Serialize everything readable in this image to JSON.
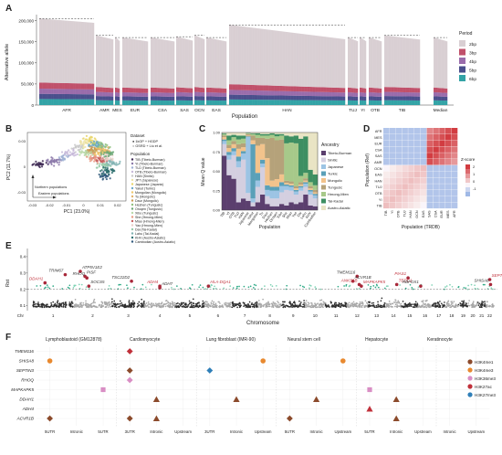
{
  "chart_data": [
    {
      "panel": "A",
      "type": "bar",
      "ylabel": "Alternative allele",
      "xlabel": "Population",
      "y_ticks": [
        "0",
        "50,000",
        "100,000",
        "150,000",
        "200,000"
      ],
      "ylim": [
        0,
        210000
      ],
      "groups": [
        "AFR",
        "AMR",
        "MES",
        "EUR",
        "CSA",
        "SAS",
        "OCN",
        "EAS",
        "HAN",
        "TUJ",
        "YI",
        "OTB",
        "TIB",
        "Median"
      ],
      "group_totals": [
        205000,
        165000,
        160000,
        160000,
        160000,
        162000,
        165000,
        160000,
        190000,
        160000,
        160000,
        160000,
        165000,
        160000
      ],
      "legend_title": "Period",
      "series": [
        {
          "name": "2bp",
          "color": "#d9cfd3",
          "approx_share": 0.74
        },
        {
          "name": "3bp",
          "color": "#c0506a",
          "approx_share": 0.07
        },
        {
          "name": "4bp",
          "color": "#9a6cab",
          "approx_share": 0.06
        },
        {
          "name": "5bp",
          "color": "#4a4f8c",
          "approx_share": 0.06
        },
        {
          "name": "6bp",
          "color": "#33a3a6",
          "approx_share": 0.07
        }
      ]
    },
    {
      "panel": "B",
      "type": "scatter",
      "xlabel": "PC1 (23.0%)",
      "ylabel": "PC2 (11.7%)",
      "x_ticks": [
        "-0.03",
        "-0.02",
        "-0.01",
        "0",
        "0.01",
        "0.02"
      ],
      "y_ticks": [
        "-0.03",
        "0",
        "0.03"
      ],
      "annot_north": "Northern populations",
      "annot_east": "Eastern populations",
      "dataset_title": "Dataset",
      "datasets": [
        "● 1kGP + HGDP",
        "○ GSRD + Liu et al."
      ],
      "population_title": "Population",
      "populations": [
        "TIB (Tibeto-Burman)",
        "YI (Tibeto-Burman)",
        "TUJ (Tibeto-Burman)",
        "OTB (Tibeto-Burman)",
        "HAN (Sinitic)",
        "JPT (Japanese)",
        "Japanese (Japanic)",
        "Yakut (Turkic)",
        "Mongolian (Mongolic)",
        "Tu (Mongolic)",
        "Daur (Mongolic)",
        "Hezhen (Tungusic)",
        "Oroqen (Tungusic)",
        "Xibo (Tungusic)",
        "She (Hmong-Mien)",
        "Miao (Hmong-Mien)",
        "Yao (Hmong-Mien)",
        "Dai (Tai-Kadai)",
        "Lahu (Tai-Kadai)",
        "KHV (Austro-Asiatic)",
        "Cambodian (Austro-Asiatic)"
      ],
      "pop_colors": [
        "#3f2a55",
        "#8a77a8",
        "#9fb0d4",
        "#c7b8d9",
        "#c9c9c9",
        "#ece3a8",
        "#e9d66b",
        "#6aa8c9",
        "#f0c86c",
        "#e3b36b",
        "#c99a54",
        "#8fbf7e",
        "#6aa774",
        "#b8d8a8",
        "#e79a83",
        "#c55e5e",
        "#ead0c8",
        "#97caa8",
        "#80b3b3",
        "#2e6f6f",
        "#315b7d"
      ]
    },
    {
      "panel": "C",
      "type": "bar",
      "ylabel": "Mean Q value",
      "xlabel": "Population",
      "y_ticks": [
        "0.00",
        "0.25",
        "0.50",
        "0.75",
        "1.00"
      ],
      "categories": [
        "TIB",
        "YI",
        "OTB",
        "TUJ",
        "HAN",
        "Japanese",
        "Yakut",
        "Mongolian",
        "Tu",
        "Daur",
        "Hezhen",
        "Oroqen",
        "Xibo",
        "She",
        "Miao",
        "Yao",
        "Dai",
        "Lahu",
        "KHV",
        "Cambodian"
      ],
      "legend_title": "Ancestry",
      "series": [
        {
          "name": "Tibeto-Burman",
          "color": "#5b3f6e",
          "values": [
            0.7,
            0.45,
            0.4,
            0.1,
            0.15,
            0.12,
            0.05,
            0.1,
            0.2,
            0.08,
            0.05,
            0.05,
            0.08,
            0.06,
            0.1,
            0.08,
            0.1,
            0.2,
            0.06,
            0.05
          ]
        },
        {
          "name": "Sinitic",
          "color": "#d4cfe0",
          "values": [
            0.15,
            0.2,
            0.3,
            0.45,
            0.5,
            0.1,
            0.05,
            0.2,
            0.35,
            0.1,
            0.1,
            0.1,
            0.15,
            0.2,
            0.15,
            0.12,
            0.15,
            0.1,
            0.14,
            0.1
          ]
        },
        {
          "name": "Japanese",
          "color": "#9cc4e4",
          "values": [
            0.04,
            0.06,
            0.05,
            0.08,
            0.08,
            0.72,
            0.05,
            0.08,
            0.05,
            0.08,
            0.1,
            0.1,
            0.08,
            0.05,
            0.05,
            0.04,
            0.04,
            0.04,
            0.04,
            0.04
          ]
        },
        {
          "name": "Turkic",
          "color": "#5aa0b8",
          "values": [
            0.02,
            0.04,
            0.04,
            0.06,
            0.03,
            0.01,
            0.7,
            0.1,
            0.05,
            0.06,
            0.05,
            0.05,
            0.05,
            0.02,
            0.02,
            0.02,
            0.02,
            0.02,
            0.02,
            0.02
          ]
        },
        {
          "name": "Mongolic",
          "color": "#f2c38c",
          "values": [
            0.03,
            0.05,
            0.05,
            0.1,
            0.05,
            0.01,
            0.05,
            0.35,
            0.2,
            0.35,
            0.08,
            0.1,
            0.1,
            0.02,
            0.02,
            0.02,
            0.02,
            0.02,
            0.02,
            0.02
          ]
        },
        {
          "name": "Tungusic",
          "color": "#b5a27a",
          "values": [
            0.02,
            0.04,
            0.04,
            0.06,
            0.05,
            0.02,
            0.06,
            0.1,
            0.08,
            0.25,
            0.55,
            0.5,
            0.45,
            0.03,
            0.03,
            0.03,
            0.03,
            0.03,
            0.03,
            0.03
          ]
        },
        {
          "name": "Hmong-Mien",
          "color": "#a7c98a",
          "values": [
            0.02,
            0.06,
            0.05,
            0.06,
            0.06,
            0.01,
            0.02,
            0.04,
            0.03,
            0.04,
            0.04,
            0.05,
            0.05,
            0.48,
            0.5,
            0.55,
            0.08,
            0.07,
            0.05,
            0.06
          ]
        },
        {
          "name": "Tai-Kadai",
          "color": "#3e8f62",
          "values": [
            0.01,
            0.06,
            0.03,
            0.05,
            0.04,
            0.005,
            0.01,
            0.02,
            0.02,
            0.02,
            0.02,
            0.03,
            0.02,
            0.1,
            0.08,
            0.1,
            0.48,
            0.47,
            0.16,
            0.14
          ]
        },
        {
          "name": "Austro-Asiatic",
          "color": "#e9e4c4",
          "values": [
            0.01,
            0.04,
            0.03,
            0.04,
            0.04,
            0.005,
            0.01,
            0.01,
            0.02,
            0.02,
            0.01,
            0.02,
            0.02,
            0.04,
            0.05,
            0.04,
            0.08,
            0.05,
            0.48,
            0.54
          ]
        }
      ]
    },
    {
      "panel": "D",
      "type": "heatmap",
      "xlabel": "Population (TRDB)",
      "ylabel": "Population (Ref)",
      "rows": [
        "AFR",
        "MES",
        "EUR",
        "CSA",
        "SAS",
        "AMR",
        "OCN",
        "EAS",
        "HAN",
        "TUJ",
        "OTB",
        "YI",
        "TIB"
      ],
      "cols": [
        "TIB",
        "YI",
        "OTB",
        "TUJ",
        "HAN",
        "OCN",
        "EAS",
        "SAS",
        "CSA",
        "EUR",
        "MES",
        "AFR"
      ],
      "legend_title": "Z-score",
      "legend_ticks": [
        "2",
        "1",
        "0",
        "-1"
      ]
    },
    {
      "panel": "E",
      "type": "scatter",
      "ylabel": "Rst",
      "xlabel": "Chromosome",
      "x_prefix": "Chr",
      "chromosomes": [
        "1",
        "2",
        "3",
        "4",
        "5",
        "6",
        "7",
        "8",
        "9",
        "10",
        "11",
        "12",
        "13",
        "14",
        "15",
        "16",
        "17",
        "18",
        "19",
        "20",
        "21",
        "22"
      ],
      "y_ticks": [
        "0.1",
        "0.2",
        "0.3",
        "0.4"
      ],
      "ylim": [
        0.07,
        0.45
      ],
      "threshold": 0.2,
      "labeled_genes": [
        {
          "gene": "DDAH1",
          "chr": "1",
          "pos": 0.3,
          "rst": 0.24,
          "color": "#c0303a"
        },
        {
          "gene": "ATP5V1E2",
          "chr": "2",
          "pos": 0.18,
          "rst": 0.31,
          "color": "#333333"
        },
        {
          "gene": "TRIM67",
          "chr": "1",
          "pos": 0.8,
          "rst": 0.29,
          "color": "#333333"
        },
        {
          "gene": "PISF",
          "chr": "2",
          "pos": 0.3,
          "rst": 0.28,
          "color": "#333333"
        },
        {
          "gene": "RHOQ",
          "chr": "2",
          "pos": 0.35,
          "rst": 0.27,
          "color": "#333333"
        },
        {
          "gene": "SOCS5",
          "chr": "2",
          "pos": 0.4,
          "rst": 0.22,
          "color": "#333333"
        },
        {
          "gene": "TSC22D2",
          "chr": "3",
          "pos": 0.6,
          "rst": 0.25,
          "color": "#333333"
        },
        {
          "gene": "ADH7",
          "chr": "4",
          "pos": 0.5,
          "rst": 0.21,
          "color": "#333333"
        },
        {
          "gene": "ADH4",
          "chr": "4",
          "pos": 0.5,
          "rst": 0.22,
          "color": "#c0303a"
        },
        {
          "gene": "HLA-DQA1",
          "chr": "6",
          "pos": 0.15,
          "rst": 0.22,
          "color": "#c0303a"
        },
        {
          "gene": "TMEM116",
          "chr": "12",
          "pos": 0.5,
          "rst": 0.28,
          "color": "#333333"
        },
        {
          "gene": "ACVR1B",
          "chr": "12",
          "pos": 0.3,
          "rst": 0.25,
          "color": "#333333"
        },
        {
          "gene": "ANKS1B",
          "chr": "12",
          "pos": 0.6,
          "rst": 0.23,
          "color": "#c0303a"
        },
        {
          "gene": "MAPKAPK5",
          "chr": "12",
          "pos": 0.7,
          "rst": 0.22,
          "color": "#c0303a"
        },
        {
          "gene": "PIAS1",
          "chr": "15",
          "pos": 0.4,
          "rst": 0.27,
          "color": "#c0303a"
        },
        {
          "gene": "TEDC1",
          "chr": "14",
          "pos": 0.7,
          "rst": 0.23,
          "color": "#c0303a"
        },
        {
          "gene": "RBFOX1",
          "chr": "16",
          "pos": 0.2,
          "rst": 0.22,
          "color": "#333333"
        },
        {
          "gene": "SEPTIN3",
          "chr": "22",
          "pos": 0.5,
          "rst": 0.26,
          "color": "#c0303a"
        },
        {
          "gene": "SHISA8",
          "chr": "22",
          "pos": 0.6,
          "rst": 0.23,
          "color": "#333333"
        }
      ]
    },
    {
      "panel": "F",
      "type": "scatter",
      "cells": [
        "Lymphoblastoid (GM12878)",
        "Cardiomyocyte",
        "Lung fibroblast (IMR-90)",
        "Neural stem cell",
        "Hepatocyte",
        "Keratinocyte"
      ],
      "region_labels": [
        "5UTR",
        "Intronic",
        "5UTR",
        "3UTR",
        "Intronic",
        "Upstream",
        "3UTR",
        "Intronic",
        "Upstream",
        "5UTR",
        "Intronic",
        "Upstream",
        "5UTR",
        "Intronic",
        "Upstream",
        "Intronic",
        "Upstream"
      ],
      "genes": [
        "TMEM116",
        "SHISA8",
        "SEPTIN3",
        "RHOQ",
        "MAPKAPK5",
        "DDAH1",
        "ADH4",
        "ACVR1B"
      ],
      "legend": [
        {
          "name": "H3K4me1",
          "color": "#8b4a2b",
          "shape": "circle"
        },
        {
          "name": "H3K4me3",
          "color": "#e8892f",
          "shape": "circle"
        },
        {
          "name": "H3K36me3",
          "color": "#d98ec4",
          "shape": "circle"
        },
        {
          "name": "H3K27ac",
          "color": "#c0303a",
          "shape": "circle"
        },
        {
          "name": "H3K27me3",
          "color": "#2f7fb8",
          "shape": "circle"
        }
      ],
      "marks": [
        {
          "gene": "TMEM116",
          "col": 4,
          "color": "#c0303a",
          "shape": "diamond"
        },
        {
          "gene": "SHISA8",
          "col": 1,
          "color": "#e8892f",
          "shape": "circle"
        },
        {
          "gene": "SHISA8",
          "col": 9,
          "color": "#e8892f",
          "shape": "circle"
        },
        {
          "gene": "SHISA8",
          "col": 12,
          "color": "#e8892f",
          "shape": "circle"
        },
        {
          "gene": "SEPTIN3",
          "col": 4,
          "color": "#8b4a2b",
          "shape": "diamond"
        },
        {
          "gene": "SEPTIN3",
          "col": 7,
          "color": "#2f7fb8",
          "shape": "diamond"
        },
        {
          "gene": "RHOQ",
          "col": 4,
          "color": "#d98ec4",
          "shape": "diamond"
        },
        {
          "gene": "MAPKAPK5",
          "col": 3,
          "color": "#d98ec4",
          "shape": "square"
        },
        {
          "gene": "MAPKAPK5",
          "col": 13,
          "color": "#d98ec4",
          "shape": "square"
        },
        {
          "gene": "DDAH1",
          "col": 5,
          "color": "#8b4a2b",
          "shape": "triangle"
        },
        {
          "gene": "DDAH1",
          "col": 8,
          "color": "#8b4a2b",
          "shape": "triangle"
        },
        {
          "gene": "DDAH1",
          "col": 11,
          "color": "#8b4a2b",
          "shape": "triangle"
        },
        {
          "gene": "DDAH1",
          "col": 14,
          "color": "#8b4a2b",
          "shape": "triangle"
        },
        {
          "gene": "ADH4",
          "col": 13,
          "color": "#c0303a",
          "shape": "triangle"
        },
        {
          "gene": "ACVR1B",
          "col": 1,
          "color": "#8b4a2b",
          "shape": "diamond"
        },
        {
          "gene": "ACVR1B",
          "col": 4,
          "color": "#8b4a2b",
          "shape": "diamond"
        },
        {
          "gene": "ACVR1B",
          "col": 5,
          "color": "#8b4a2b",
          "shape": "triangle"
        },
        {
          "gene": "ACVR1B",
          "col": 10,
          "color": "#8b4a2b",
          "shape": "diamond"
        },
        {
          "gene": "ACVR1B",
          "col": 14,
          "color": "#8b4a2b",
          "shape": "triangle"
        }
      ]
    }
  ]
}
